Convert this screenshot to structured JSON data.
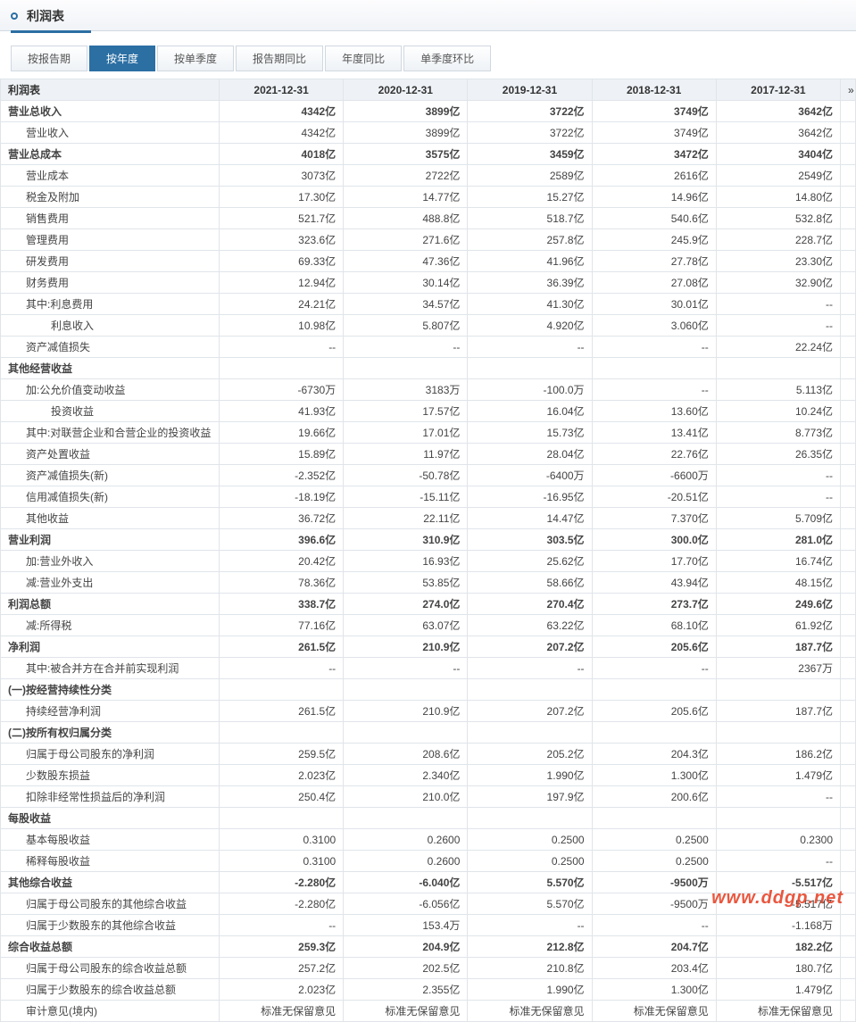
{
  "header": {
    "title": "利润表"
  },
  "tabs": [
    {
      "label": "按报告期",
      "active": false
    },
    {
      "label": "按年度",
      "active": true
    },
    {
      "label": "按单季度",
      "active": false
    },
    {
      "label": "报告期同比",
      "active": false
    },
    {
      "label": "年度同比",
      "active": false
    },
    {
      "label": "单季度环比",
      "active": false
    }
  ],
  "columns": [
    "利润表",
    "2021-12-31",
    "2020-12-31",
    "2019-12-31",
    "2018-12-31",
    "2017-12-31"
  ],
  "rows": [
    {
      "label": "营业总收入",
      "indent": 0,
      "bold": true,
      "v": [
        "4342亿",
        "3899亿",
        "3722亿",
        "3749亿",
        "3642亿"
      ]
    },
    {
      "label": "营业收入",
      "indent": 1,
      "v": [
        "4342亿",
        "3899亿",
        "3722亿",
        "3749亿",
        "3642亿"
      ]
    },
    {
      "label": "营业总成本",
      "indent": 0,
      "bold": true,
      "v": [
        "4018亿",
        "3575亿",
        "3459亿",
        "3472亿",
        "3404亿"
      ]
    },
    {
      "label": "营业成本",
      "indent": 1,
      "v": [
        "3073亿",
        "2722亿",
        "2589亿",
        "2616亿",
        "2549亿"
      ]
    },
    {
      "label": "税金及附加",
      "indent": 1,
      "v": [
        "17.30亿",
        "14.77亿",
        "15.27亿",
        "14.96亿",
        "14.80亿"
      ]
    },
    {
      "label": "销售费用",
      "indent": 1,
      "v": [
        "521.7亿",
        "488.8亿",
        "518.7亿",
        "540.6亿",
        "532.8亿"
      ]
    },
    {
      "label": "管理费用",
      "indent": 1,
      "v": [
        "323.6亿",
        "271.6亿",
        "257.8亿",
        "245.9亿",
        "228.7亿"
      ]
    },
    {
      "label": "研发费用",
      "indent": 1,
      "v": [
        "69.33亿",
        "47.36亿",
        "41.96亿",
        "27.78亿",
        "23.30亿"
      ]
    },
    {
      "label": "财务费用",
      "indent": 1,
      "v": [
        "12.94亿",
        "30.14亿",
        "36.39亿",
        "27.08亿",
        "32.90亿"
      ]
    },
    {
      "label": "其中:利息费用",
      "indent": 1,
      "v": [
        "24.21亿",
        "34.57亿",
        "41.30亿",
        "30.01亿",
        "--"
      ]
    },
    {
      "label": "利息收入",
      "indent": 2,
      "v": [
        "10.98亿",
        "5.807亿",
        "4.920亿",
        "3.060亿",
        "--"
      ]
    },
    {
      "label": "资产减值损失",
      "indent": 1,
      "v": [
        "--",
        "--",
        "--",
        "--",
        "22.24亿"
      ]
    },
    {
      "label": "其他经营收益",
      "indent": 0,
      "bold": true,
      "v": [
        "",
        "",
        "",
        "",
        ""
      ]
    },
    {
      "label": "加:公允价值变动收益",
      "indent": 1,
      "v": [
        "-6730万",
        "3183万",
        "-100.0万",
        "--",
        "5.113亿"
      ]
    },
    {
      "label": "投资收益",
      "indent": 2,
      "v": [
        "41.93亿",
        "17.57亿",
        "16.04亿",
        "13.60亿",
        "10.24亿"
      ]
    },
    {
      "label": "其中:对联营企业和合营企业的投资收益",
      "indent": 1,
      "v": [
        "19.66亿",
        "17.01亿",
        "15.73亿",
        "13.41亿",
        "8.773亿"
      ]
    },
    {
      "label": "资产处置收益",
      "indent": 1,
      "v": [
        "15.89亿",
        "11.97亿",
        "28.04亿",
        "22.76亿",
        "26.35亿"
      ]
    },
    {
      "label": "资产减值损失(新)",
      "indent": 1,
      "v": [
        "-2.352亿",
        "-50.78亿",
        "-6400万",
        "-6600万",
        "--"
      ]
    },
    {
      "label": "信用减值损失(新)",
      "indent": 1,
      "v": [
        "-18.19亿",
        "-15.11亿",
        "-16.95亿",
        "-20.51亿",
        "--"
      ]
    },
    {
      "label": "其他收益",
      "indent": 1,
      "v": [
        "36.72亿",
        "22.11亿",
        "14.47亿",
        "7.370亿",
        "5.709亿"
      ]
    },
    {
      "label": "营业利润",
      "indent": 0,
      "bold": true,
      "v": [
        "396.6亿",
        "310.9亿",
        "303.5亿",
        "300.0亿",
        "281.0亿"
      ]
    },
    {
      "label": "加:营业外收入",
      "indent": 1,
      "v": [
        "20.42亿",
        "16.93亿",
        "25.62亿",
        "17.70亿",
        "16.74亿"
      ]
    },
    {
      "label": "减:营业外支出",
      "indent": 1,
      "v": [
        "78.36亿",
        "53.85亿",
        "58.66亿",
        "43.94亿",
        "48.15亿"
      ]
    },
    {
      "label": "利润总额",
      "indent": 0,
      "bold": true,
      "v": [
        "338.7亿",
        "274.0亿",
        "270.4亿",
        "273.7亿",
        "249.6亿"
      ]
    },
    {
      "label": "减:所得税",
      "indent": 1,
      "v": [
        "77.16亿",
        "63.07亿",
        "63.22亿",
        "68.10亿",
        "61.92亿"
      ]
    },
    {
      "label": "净利润",
      "indent": 0,
      "bold": true,
      "v": [
        "261.5亿",
        "210.9亿",
        "207.2亿",
        "205.6亿",
        "187.7亿"
      ]
    },
    {
      "label": "其中:被合并方在合并前实现利润",
      "indent": 1,
      "v": [
        "--",
        "--",
        "--",
        "--",
        "2367万"
      ]
    },
    {
      "label": "(一)按经营持续性分类",
      "indent": 0,
      "bold": true,
      "v": [
        "",
        "",
        "",
        "",
        ""
      ]
    },
    {
      "label": "持续经营净利润",
      "indent": 1,
      "v": [
        "261.5亿",
        "210.9亿",
        "207.2亿",
        "205.6亿",
        "187.7亿"
      ]
    },
    {
      "label": "(二)按所有权归属分类",
      "indent": 0,
      "bold": true,
      "v": [
        "",
        "",
        "",
        "",
        ""
      ]
    },
    {
      "label": "归属于母公司股东的净利润",
      "indent": 1,
      "v": [
        "259.5亿",
        "208.6亿",
        "205.2亿",
        "204.3亿",
        "186.2亿"
      ]
    },
    {
      "label": "少数股东损益",
      "indent": 1,
      "v": [
        "2.023亿",
        "2.340亿",
        "1.990亿",
        "1.300亿",
        "1.479亿"
      ]
    },
    {
      "label": "扣除非经常性损益后的净利润",
      "indent": 1,
      "v": [
        "250.4亿",
        "210.0亿",
        "197.9亿",
        "200.6亿",
        "--"
      ]
    },
    {
      "label": "每股收益",
      "indent": 0,
      "bold": true,
      "v": [
        "",
        "",
        "",
        "",
        ""
      ]
    },
    {
      "label": "基本每股收益",
      "indent": 1,
      "v": [
        "0.3100",
        "0.2600",
        "0.2500",
        "0.2500",
        "0.2300"
      ]
    },
    {
      "label": "稀释每股收益",
      "indent": 1,
      "v": [
        "0.3100",
        "0.2600",
        "0.2500",
        "0.2500",
        "--"
      ]
    },
    {
      "label": "其他综合收益",
      "indent": 0,
      "bold": true,
      "v": [
        "-2.280亿",
        "-6.040亿",
        "5.570亿",
        "-9500万",
        "-5.517亿"
      ]
    },
    {
      "label": "归属于母公司股东的其他综合收益",
      "indent": 1,
      "v": [
        "-2.280亿",
        "-6.056亿",
        "5.570亿",
        "-9500万",
        "-5.517亿"
      ]
    },
    {
      "label": "归属于少数股东的其他综合收益",
      "indent": 1,
      "v": [
        "--",
        "153.4万",
        "--",
        "--",
        "-1.168万"
      ]
    },
    {
      "label": "综合收益总额",
      "indent": 0,
      "bold": true,
      "v": [
        "259.3亿",
        "204.9亿",
        "212.8亿",
        "204.7亿",
        "182.2亿"
      ]
    },
    {
      "label": "归属于母公司股东的综合收益总额",
      "indent": 1,
      "v": [
        "257.2亿",
        "202.5亿",
        "210.8亿",
        "203.4亿",
        "180.7亿"
      ]
    },
    {
      "label": "归属于少数股东的综合收益总额",
      "indent": 1,
      "v": [
        "2.023亿",
        "2.355亿",
        "1.990亿",
        "1.300亿",
        "1.479亿"
      ]
    },
    {
      "label": "审计意见(境内)",
      "indent": 1,
      "v": [
        "标准无保留意见",
        "标准无保留意见",
        "标准无保留意见",
        "标准无保留意见",
        "标准无保留意见"
      ]
    }
  ],
  "watermark": "www.ddgp.net"
}
